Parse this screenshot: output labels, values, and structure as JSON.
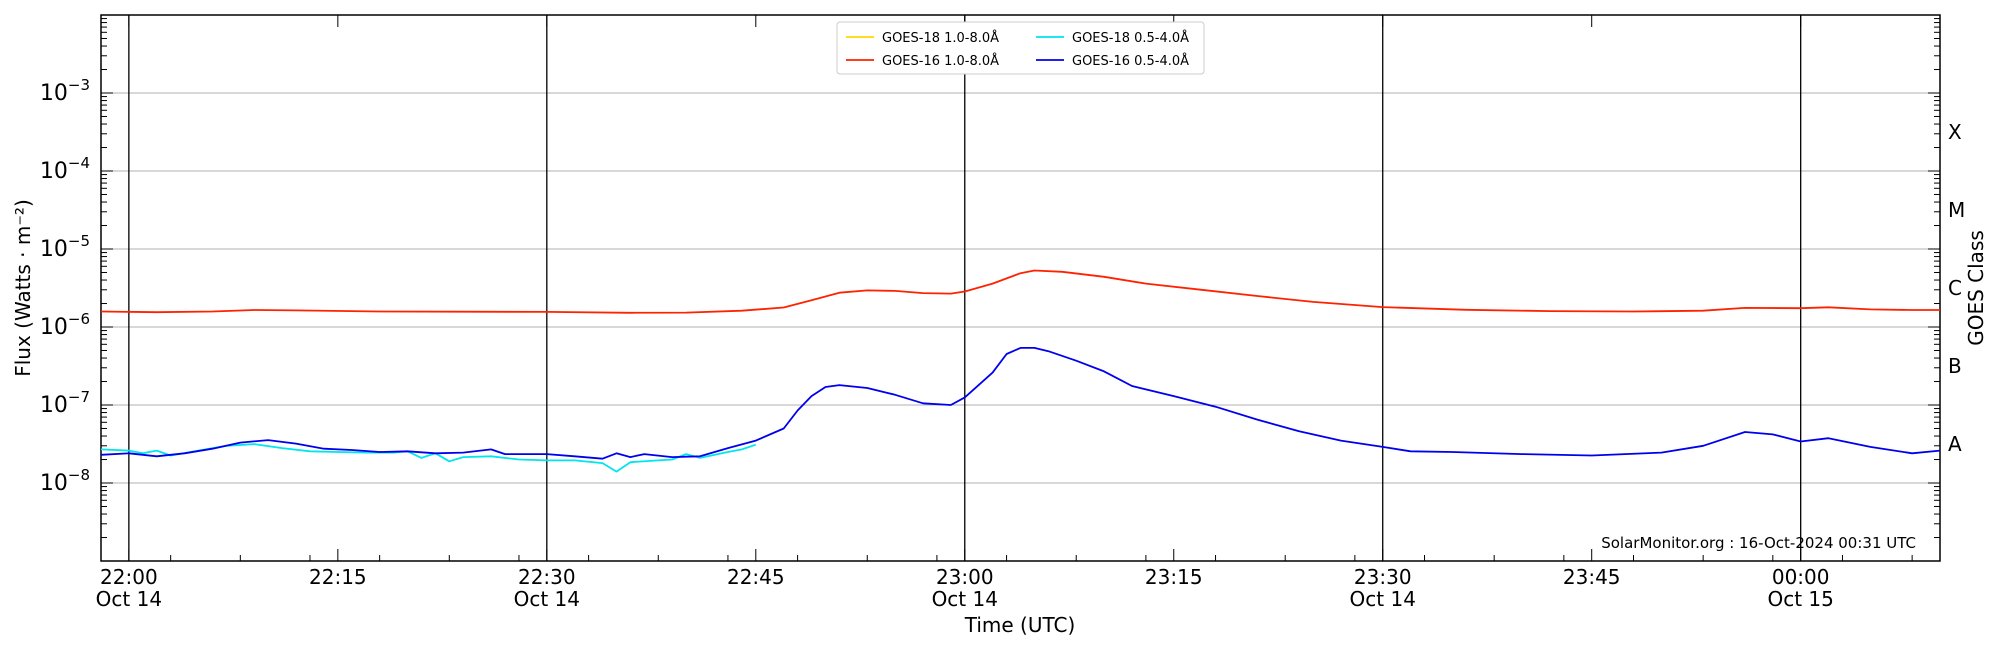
{
  "chart_data": {
    "type": "line",
    "ylabel": "Flux (Watts · m⁻²)",
    "xlabel": "Time (UTC)",
    "right_ylabel": "GOES Class",
    "y_scale": "log",
    "ylim": [
      1e-09,
      0.01
    ],
    "y_ticks": [
      {
        "value": 0.001,
        "base": "10",
        "exp": "−3"
      },
      {
        "value": 0.0001,
        "base": "10",
        "exp": "−4"
      },
      {
        "value": 1e-05,
        "base": "10",
        "exp": "−5"
      },
      {
        "value": 1e-06,
        "base": "10",
        "exp": "−6"
      },
      {
        "value": 1e-07,
        "base": "10",
        "exp": "−7"
      },
      {
        "value": 1e-08,
        "base": "10",
        "exp": "−8"
      }
    ],
    "class_labels": [
      {
        "label": "X",
        "value": 0.000316
      },
      {
        "label": "M",
        "value": 3.16e-05
      },
      {
        "label": "C",
        "value": 3.16e-06
      },
      {
        "label": "B",
        "value": 3.16e-07
      },
      {
        "label": "A",
        "value": 3.16e-08
      }
    ],
    "xlim": [
      "2024-10-14 21:58",
      "2024-10-15 00:10"
    ],
    "x_ticks": [
      {
        "time": "2024-10-14 22:00",
        "line1": "22:00",
        "line2": "Oct 14"
      },
      {
        "time": "2024-10-14 22:15",
        "line1": "22:15",
        "line2": ""
      },
      {
        "time": "2024-10-14 22:30",
        "line1": "22:30",
        "line2": "Oct 14"
      },
      {
        "time": "2024-10-14 22:45",
        "line1": "22:45",
        "line2": ""
      },
      {
        "time": "2024-10-14 23:00",
        "line1": "23:00",
        "line2": "Oct 14"
      },
      {
        "time": "2024-10-14 23:15",
        "line1": "23:15",
        "line2": ""
      },
      {
        "time": "2024-10-14 23:30",
        "line1": "23:30",
        "line2": "Oct 14"
      },
      {
        "time": "2024-10-14 23:45",
        "line1": "23:45",
        "line2": ""
      },
      {
        "time": "2024-10-15 00:00",
        "line1": "00:00",
        "line2": "Oct 15"
      }
    ],
    "vertical_lines": [
      "2024-10-14 22:00",
      "2024-10-14 22:30",
      "2024-10-14 23:00",
      "2024-10-14 23:30",
      "2024-10-15 00:00"
    ],
    "grid": "horizontal",
    "legend": {
      "placement": "top-center",
      "entries": [
        {
          "name": "GOES-18 1.0-8.0Å",
          "color": "#ffd700"
        },
        {
          "name": "GOES-16 1.0-8.0Å",
          "color": "#ff2200"
        },
        {
          "name": "GOES-18 0.5-4.0Å",
          "color": "#00e5ee"
        },
        {
          "name": "GOES-16 0.5-4.0Å",
          "color": "#0000ee"
        }
      ]
    },
    "annotation": "SolarMonitor.org : 16-Oct-2024 00:31 UTC",
    "series": [
      {
        "name": "GOES-18 1.0-8.0Å",
        "color": "#ffd700",
        "points": []
      },
      {
        "name": "GOES-16 1.0-8.0Å",
        "color": "#ff2200",
        "points": [
          [
            "2024-10-14 21:58",
            1.58e-06
          ],
          [
            "2024-10-14 22:02",
            1.55e-06
          ],
          [
            "2024-10-14 22:06",
            1.58e-06
          ],
          [
            "2024-10-14 22:09",
            1.65e-06
          ],
          [
            "2024-10-14 22:12",
            1.63e-06
          ],
          [
            "2024-10-14 22:18",
            1.58e-06
          ],
          [
            "2024-10-14 22:24",
            1.57e-06
          ],
          [
            "2024-10-14 22:30",
            1.56e-06
          ],
          [
            "2024-10-14 22:36",
            1.52e-06
          ],
          [
            "2024-10-14 22:40",
            1.53e-06
          ],
          [
            "2024-10-14 22:44",
            1.62e-06
          ],
          [
            "2024-10-14 22:47",
            1.78e-06
          ],
          [
            "2024-10-14 22:49",
            2.2e-06
          ],
          [
            "2024-10-14 22:51",
            2.75e-06
          ],
          [
            "2024-10-14 22:53",
            2.95e-06
          ],
          [
            "2024-10-14 22:55",
            2.9e-06
          ],
          [
            "2024-10-14 22:57",
            2.72e-06
          ],
          [
            "2024-10-14 22:59",
            2.68e-06
          ],
          [
            "2024-10-14 23:00",
            2.85e-06
          ],
          [
            "2024-10-14 23:02",
            3.6e-06
          ],
          [
            "2024-10-14 23:04",
            4.9e-06
          ],
          [
            "2024-10-14 23:05",
            5.3e-06
          ],
          [
            "2024-10-14 23:07",
            5.1e-06
          ],
          [
            "2024-10-14 23:10",
            4.4e-06
          ],
          [
            "2024-10-14 23:13",
            3.6e-06
          ],
          [
            "2024-10-14 23:17",
            3e-06
          ],
          [
            "2024-10-14 23:21",
            2.5e-06
          ],
          [
            "2024-10-14 23:25",
            2.1e-06
          ],
          [
            "2024-10-14 23:30",
            1.8e-06
          ],
          [
            "2024-10-14 23:36",
            1.66e-06
          ],
          [
            "2024-10-14 23:42",
            1.6e-06
          ],
          [
            "2024-10-14 23:48",
            1.58e-06
          ],
          [
            "2024-10-14 23:53",
            1.62e-06
          ],
          [
            "2024-10-14 23:56",
            1.76e-06
          ],
          [
            "2024-10-15 00:00",
            1.74e-06
          ],
          [
            "2024-10-15 00:02",
            1.79e-06
          ],
          [
            "2024-10-15 00:05",
            1.68e-06
          ],
          [
            "2024-10-15 00:08",
            1.65e-06
          ],
          [
            "2024-10-15 00:10",
            1.65e-06
          ]
        ]
      },
      {
        "name": "GOES-18 0.5-4.0Å",
        "color": "#00e5ee",
        "points": [
          [
            "2024-10-14 21:58",
            2.7e-08
          ],
          [
            "2024-10-14 22:00",
            2.6e-08
          ],
          [
            "2024-10-14 22:01",
            2.4e-08
          ],
          [
            "2024-10-14 22:02",
            2.6e-08
          ],
          [
            "2024-10-14 22:03",
            2.25e-08
          ],
          [
            "2024-10-14 22:05",
            2.6e-08
          ],
          [
            "2024-10-14 22:07",
            3e-08
          ],
          [
            "2024-10-14 22:09",
            3.15e-08
          ],
          [
            "2024-10-14 22:11",
            2.8e-08
          ],
          [
            "2024-10-14 22:13",
            2.55e-08
          ],
          [
            "2024-10-14 22:15",
            2.5e-08
          ],
          [
            "2024-10-14 22:17",
            2.45e-08
          ],
          [
            "2024-10-14 22:19",
            2.45e-08
          ],
          [
            "2024-10-14 22:20",
            2.55e-08
          ],
          [
            "2024-10-14 22:21",
            2.1e-08
          ],
          [
            "2024-10-14 22:22",
            2.4e-08
          ],
          [
            "2024-10-14 22:23",
            1.9e-08
          ],
          [
            "2024-10-14 22:24",
            2.15e-08
          ],
          [
            "2024-10-14 22:26",
            2.2e-08
          ],
          [
            "2024-10-14 22:28",
            2e-08
          ],
          [
            "2024-10-14 22:30",
            1.95e-08
          ],
          [
            "2024-10-14 22:32",
            1.95e-08
          ],
          [
            "2024-10-14 22:34",
            1.8e-08
          ],
          [
            "2024-10-14 22:35",
            1.4e-08
          ],
          [
            "2024-10-14 22:36",
            1.85e-08
          ],
          [
            "2024-10-14 22:39",
            2e-08
          ],
          [
            "2024-10-14 22:40",
            2.35e-08
          ],
          [
            "2024-10-14 22:41",
            2.1e-08
          ],
          [
            "2024-10-14 22:43",
            2.5e-08
          ],
          [
            "2024-10-14 22:44",
            2.7e-08
          ],
          [
            "2024-10-14 22:45",
            3.1e-08
          ]
        ]
      },
      {
        "name": "GOES-16 0.5-4.0Å",
        "color": "#0000ee",
        "points": [
          [
            "2024-10-14 21:58",
            2.3e-08
          ],
          [
            "2024-10-14 22:00",
            2.4e-08
          ],
          [
            "2024-10-14 22:02",
            2.2e-08
          ],
          [
            "2024-10-14 22:04",
            2.4e-08
          ],
          [
            "2024-10-14 22:06",
            2.75e-08
          ],
          [
            "2024-10-14 22:08",
            3.3e-08
          ],
          [
            "2024-10-14 22:10",
            3.55e-08
          ],
          [
            "2024-10-14 22:12",
            3.2e-08
          ],
          [
            "2024-10-14 22:14",
            2.75e-08
          ],
          [
            "2024-10-14 22:16",
            2.65e-08
          ],
          [
            "2024-10-14 22:18",
            2.5e-08
          ],
          [
            "2024-10-14 22:20",
            2.55e-08
          ],
          [
            "2024-10-14 22:22",
            2.4e-08
          ],
          [
            "2024-10-14 22:24",
            2.45e-08
          ],
          [
            "2024-10-14 22:26",
            2.7e-08
          ],
          [
            "2024-10-14 22:27",
            2.35e-08
          ],
          [
            "2024-10-14 22:30",
            2.35e-08
          ],
          [
            "2024-10-14 22:32",
            2.2e-08
          ],
          [
            "2024-10-14 22:34",
            2.05e-08
          ],
          [
            "2024-10-14 22:35",
            2.4e-08
          ],
          [
            "2024-10-14 22:36",
            2.15e-08
          ],
          [
            "2024-10-14 22:37",
            2.35e-08
          ],
          [
            "2024-10-14 22:39",
            2.15e-08
          ],
          [
            "2024-10-14 22:41",
            2.2e-08
          ],
          [
            "2024-10-14 22:43",
            2.8e-08
          ],
          [
            "2024-10-14 22:45",
            3.5e-08
          ],
          [
            "2024-10-14 22:47",
            5e-08
          ],
          [
            "2024-10-14 22:48",
            8.5e-08
          ],
          [
            "2024-10-14 22:49",
            1.3e-07
          ],
          [
            "2024-10-14 22:50",
            1.7e-07
          ],
          [
            "2024-10-14 22:51",
            1.8e-07
          ],
          [
            "2024-10-14 22:53",
            1.65e-07
          ],
          [
            "2024-10-14 22:55",
            1.35e-07
          ],
          [
            "2024-10-14 22:57",
            1.05e-07
          ],
          [
            "2024-10-14 22:59",
            1e-07
          ],
          [
            "2024-10-14 23:00",
            1.25e-07
          ],
          [
            "2024-10-14 23:02",
            2.6e-07
          ],
          [
            "2024-10-14 23:03",
            4.5e-07
          ],
          [
            "2024-10-14 23:04",
            5.4e-07
          ],
          [
            "2024-10-14 23:05",
            5.4e-07
          ],
          [
            "2024-10-14 23:06",
            4.9e-07
          ],
          [
            "2024-10-14 23:08",
            3.7e-07
          ],
          [
            "2024-10-14 23:10",
            2.7e-07
          ],
          [
            "2024-10-14 23:12",
            1.75e-07
          ],
          [
            "2024-10-14 23:15",
            1.3e-07
          ],
          [
            "2024-10-14 23:18",
            9.5e-08
          ],
          [
            "2024-10-14 23:21",
            6.5e-08
          ],
          [
            "2024-10-14 23:24",
            4.6e-08
          ],
          [
            "2024-10-14 23:27",
            3.5e-08
          ],
          [
            "2024-10-14 23:30",
            2.9e-08
          ],
          [
            "2024-10-14 23:32",
            2.55e-08
          ],
          [
            "2024-10-14 23:35",
            2.5e-08
          ],
          [
            "2024-10-14 23:40",
            2.35e-08
          ],
          [
            "2024-10-14 23:45",
            2.25e-08
          ],
          [
            "2024-10-14 23:50",
            2.45e-08
          ],
          [
            "2024-10-14 23:53",
            3e-08
          ],
          [
            "2024-10-14 23:56",
            4.5e-08
          ],
          [
            "2024-10-14 23:58",
            4.2e-08
          ],
          [
            "2024-10-15 00:00",
            3.4e-08
          ],
          [
            "2024-10-15 00:02",
            3.75e-08
          ],
          [
            "2024-10-15 00:05",
            2.9e-08
          ],
          [
            "2024-10-15 00:08",
            2.4e-08
          ],
          [
            "2024-10-15 00:10",
            2.6e-08
          ]
        ]
      }
    ]
  }
}
